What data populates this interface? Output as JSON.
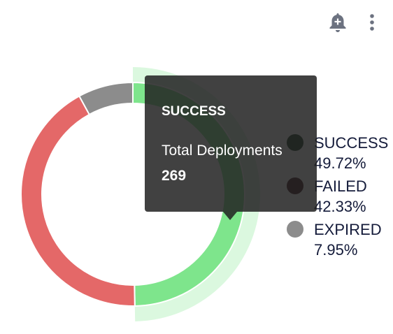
{
  "toolbar": {
    "notify_icon": "bell-plus-icon",
    "menu_icon": "more-vertical-icon"
  },
  "chart_data": {
    "type": "pie",
    "donut": true,
    "categories": [
      "SUCCESS",
      "FAILED",
      "EXPIRED"
    ],
    "values": [
      49.72,
      42.33,
      7.95
    ],
    "value_labels": [
      "49.72%",
      "42.33%",
      "7.95%"
    ],
    "colors": [
      "#7ee58c",
      "#e46868",
      "#8c8c8c"
    ],
    "legend_dot_colors": [
      "#173a1e",
      "#3e1418",
      "#8c8c8c"
    ],
    "legend_placement": "right",
    "highlighted": "SUCCESS"
  },
  "tooltip": {
    "title": "SUCCESS",
    "label": "Total Deployments",
    "value": "269"
  }
}
